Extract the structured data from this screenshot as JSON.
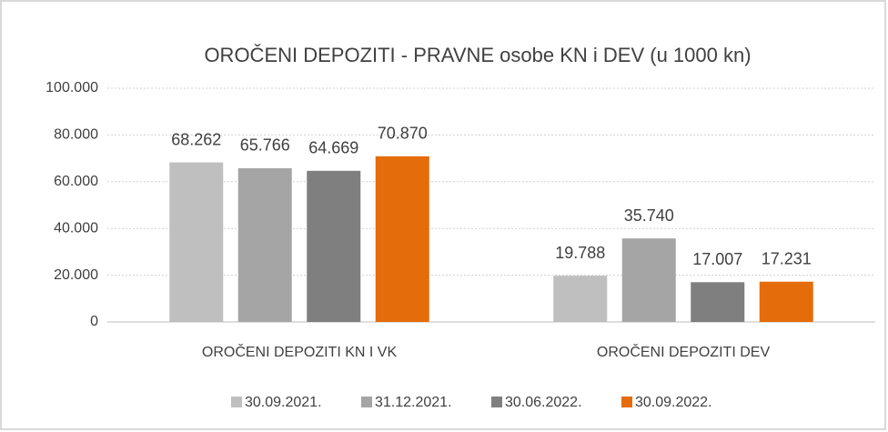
{
  "chart_data": {
    "type": "bar",
    "title": "OROČENI DEPOZITI - PRAVNE osobe KN i DEV (u 1000 kn)",
    "categories": [
      "OROČENI DEPOZITI  KN I VK",
      "OROČENI DEPOZITI DEV"
    ],
    "series": [
      {
        "name": "30.09.2021.",
        "color": "#bfbfbf",
        "values": [
          68262,
          19788
        ],
        "value_labels": [
          "68.262",
          "19.788"
        ]
      },
      {
        "name": "31.12.2021.",
        "color": "#a5a5a5",
        "values": [
          65766,
          35740
        ],
        "value_labels": [
          "65.766",
          "35.740"
        ]
      },
      {
        "name": "30.06.2022.",
        "color": "#7f7f7f",
        "values": [
          64669,
          17007
        ],
        "value_labels": [
          "64.669",
          "17.007"
        ]
      },
      {
        "name": "30.09.2022.",
        "color": "#e46c0a",
        "values": [
          70870,
          17231
        ],
        "value_labels": [
          "70.870",
          "17.231"
        ]
      }
    ],
    "ylim": [
      0,
      100000
    ],
    "yticks": [
      0,
      {
        "value": 20000,
        "label": "20.000"
      },
      {
        "value": 40000,
        "label": "40.000"
      },
      {
        "value": 60000,
        "label": "60.000"
      },
      {
        "value": 80000,
        "label": "80.000"
      },
      {
        "value": 100000,
        "label": "100.000"
      }
    ],
    "grid": true,
    "legend": "bottom"
  }
}
